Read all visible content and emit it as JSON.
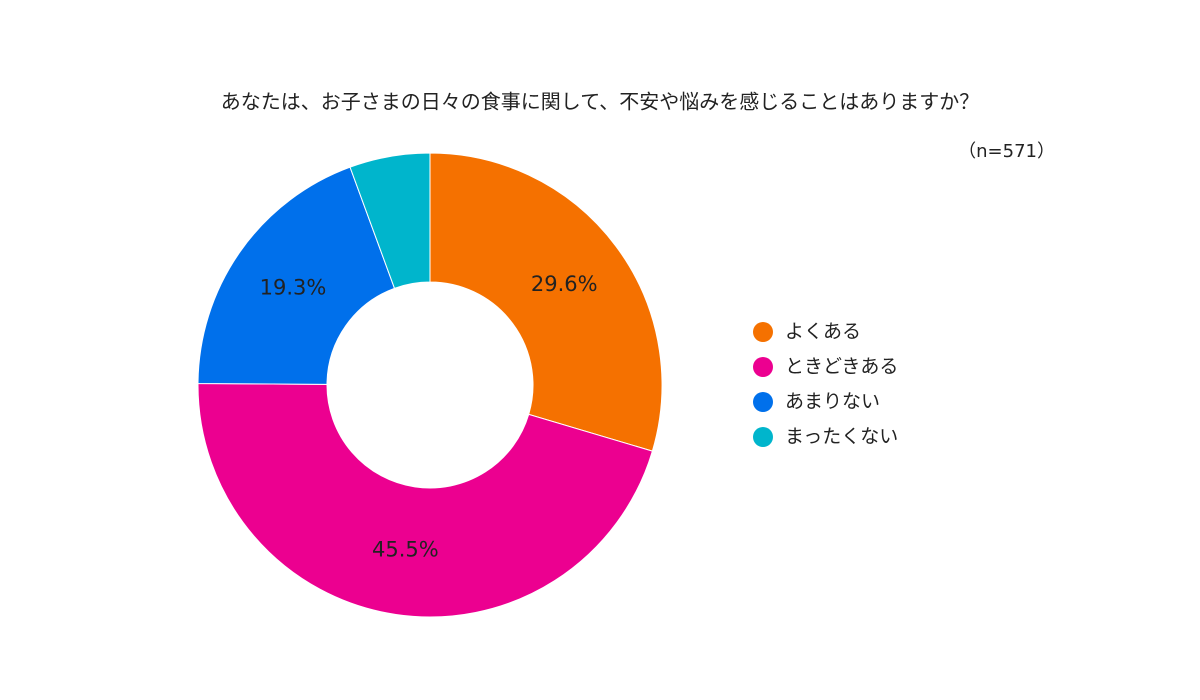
{
  "chart_data": {
    "type": "donut",
    "title": "あなたは、お子さまの日々の食事に関して、不安や悩みを感じることはありますか？",
    "subtitle": "（n=571）",
    "categories": [
      "よくある",
      "ときどきある",
      "あまりない",
      "まったくない"
    ],
    "values": [
      29.6,
      45.5,
      19.3,
      5.6
    ],
    "value_labels": [
      "29.6%",
      "45.5%",
      "19.3%",
      null
    ],
    "colors": [
      "#f57100",
      "#ec0090",
      "#0070eb",
      "#00b5cc"
    ],
    "legend": "right"
  }
}
